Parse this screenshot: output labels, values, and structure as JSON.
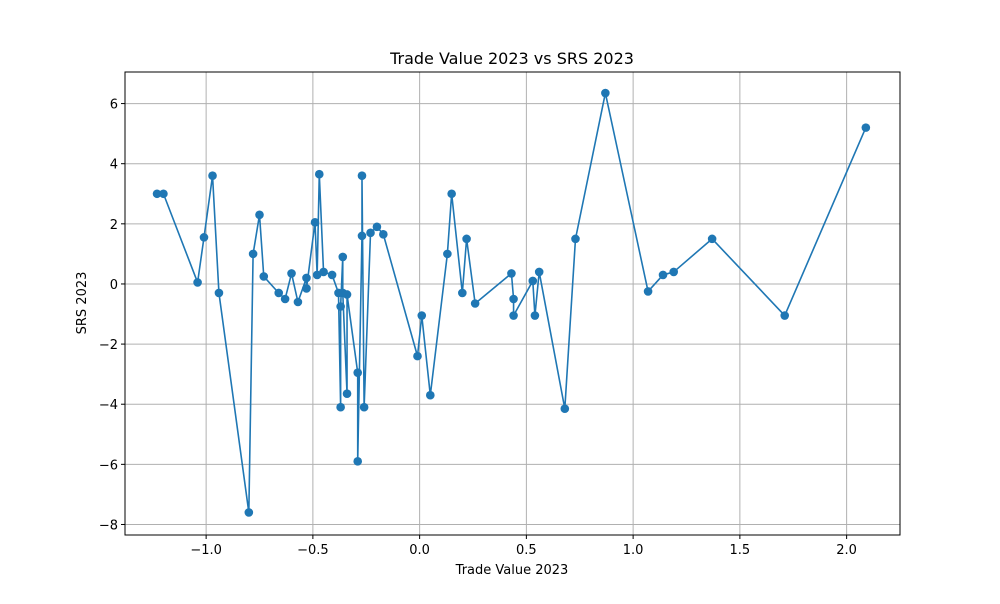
{
  "chart_data": {
    "type": "line",
    "title": "Trade Value 2023 vs SRS 2023",
    "xlabel": "Trade Value 2023",
    "ylabel": "SRS 2023",
    "xlim": [
      -1.38,
      2.25
    ],
    "ylim": [
      -8.35,
      7.05
    ],
    "xticks": [
      -1.0,
      -0.5,
      0.0,
      0.5,
      1.0,
      1.5,
      2.0
    ],
    "xtick_labels": [
      "−1.0",
      "−0.5",
      "0.0",
      "0.5",
      "1.0",
      "1.5",
      "2.0"
    ],
    "yticks": [
      -8,
      -6,
      -4,
      -2,
      0,
      2,
      4,
      6
    ],
    "ytick_labels": [
      "−8",
      "−6",
      "−4",
      "−2",
      "0",
      "2",
      "4",
      "6"
    ],
    "grid": true,
    "marker": "circle",
    "series_color": "#1f77b4",
    "series": [
      {
        "x": [
          -1.23,
          -1.2,
          -1.04,
          -1.01,
          -0.97,
          -0.94,
          -0.8,
          -0.78,
          -0.75,
          -0.73,
          -0.66,
          -0.63,
          -0.6,
          -0.57,
          -0.53,
          -0.53,
          -0.49,
          -0.48,
          -0.47,
          -0.45,
          -0.41,
          -0.38,
          -0.37,
          -0.37,
          -0.36,
          -0.36,
          -0.34,
          -0.34,
          -0.29,
          -0.29,
          -0.27,
          -0.27,
          -0.26,
          -0.23,
          -0.2,
          -0.17,
          -0.01,
          0.01,
          0.05,
          0.13,
          0.15,
          0.2,
          0.22,
          0.26,
          0.43,
          0.44,
          0.44,
          0.53,
          0.54,
          0.56,
          0.68,
          0.73,
          0.87,
          1.07,
          1.14,
          1.19,
          1.37,
          1.71,
          2.09
        ],
        "y": [
          3.0,
          3.0,
          0.05,
          1.55,
          3.6,
          -0.3,
          -7.6,
          1.0,
          2.3,
          0.25,
          -0.3,
          -0.5,
          0.35,
          -0.6,
          0.2,
          -0.15,
          2.05,
          0.3,
          3.65,
          0.4,
          0.3,
          -0.3,
          -4.1,
          -0.75,
          0.9,
          -0.3,
          -3.65,
          -0.35,
          -2.95,
          -5.9,
          1.6,
          3.6,
          -4.1,
          1.7,
          1.9,
          1.65,
          -2.4,
          -1.05,
          -3.7,
          1.0,
          3.0,
          -0.3,
          1.5,
          -0.65,
          0.35,
          -0.5,
          -1.05,
          0.1,
          -1.05,
          0.4,
          -4.15,
          1.5,
          6.35,
          -0.25,
          0.3,
          0.4,
          1.5,
          -1.05,
          5.2
        ]
      }
    ]
  }
}
